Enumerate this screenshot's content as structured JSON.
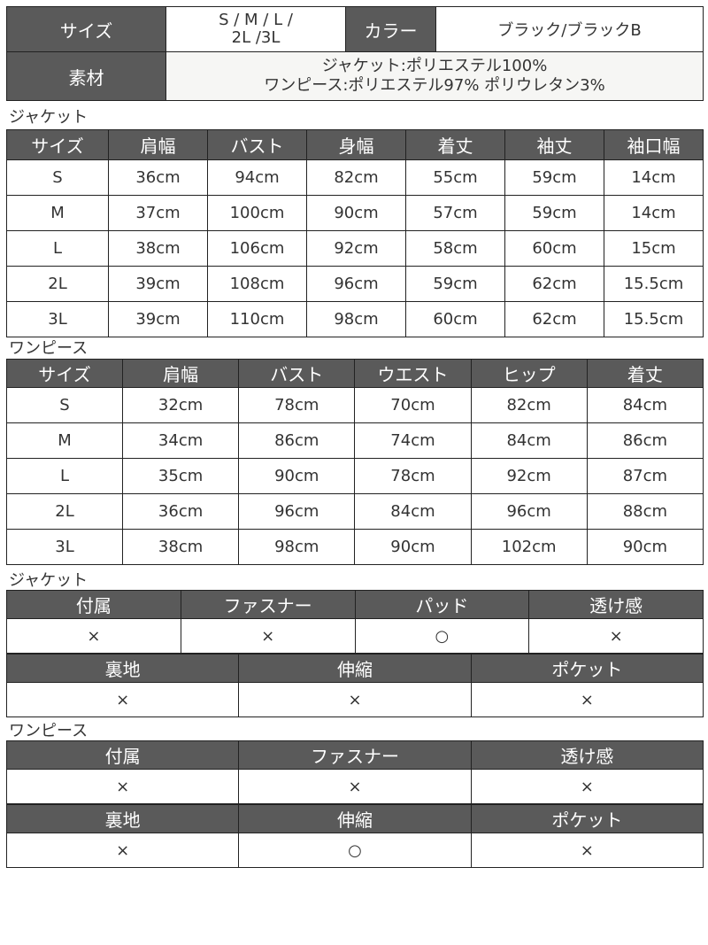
{
  "spec": {
    "size_label": "サイズ",
    "size_value_line1": "S / M / L /",
    "size_value_line2": "2L /3L",
    "color_label": "カラー",
    "color_value": "ブラック/ブラックB",
    "material_label": "素材",
    "material_line1": "ジャケット:ポリエステル100%",
    "material_line2": "ワンピース:ポリエステル97% ポリウレタン3%"
  },
  "jacket_size": {
    "title": "ジャケット",
    "headers": [
      "サイズ",
      "肩幅",
      "バスト",
      "身幅",
      "着丈",
      "袖丈",
      "袖口幅"
    ],
    "rows": [
      [
        "S",
        "36cm",
        "94cm",
        "82cm",
        "55cm",
        "59cm",
        "14cm"
      ],
      [
        "M",
        "37cm",
        "100cm",
        "90cm",
        "57cm",
        "59cm",
        "14cm"
      ],
      [
        "L",
        "38cm",
        "106cm",
        "92cm",
        "58cm",
        "60cm",
        "15cm"
      ],
      [
        "2L",
        "39cm",
        "108cm",
        "96cm",
        "59cm",
        "62cm",
        "15.5cm"
      ],
      [
        "3L",
        "39cm",
        "110cm",
        "98cm",
        "60cm",
        "62cm",
        "15.5cm"
      ]
    ]
  },
  "dress_size": {
    "title": "ワンピース",
    "headers": [
      "サイズ",
      "肩幅",
      "バスト",
      "ウエスト",
      "ヒップ",
      "着丈"
    ],
    "rows": [
      [
        "S",
        "32cm",
        "78cm",
        "70cm",
        "82cm",
        "84cm"
      ],
      [
        "M",
        "34cm",
        "86cm",
        "74cm",
        "84cm",
        "86cm"
      ],
      [
        "L",
        "35cm",
        "90cm",
        "78cm",
        "92cm",
        "87cm"
      ],
      [
        "2L",
        "36cm",
        "96cm",
        "84cm",
        "96cm",
        "88cm"
      ],
      [
        "3L",
        "38cm",
        "98cm",
        "90cm",
        "102cm",
        "90cm"
      ]
    ]
  },
  "jacket_features": {
    "title": "ジャケット",
    "groups": [
      {
        "headers": [
          "付属",
          "ファスナー",
          "パッド",
          "透け感"
        ],
        "values": [
          "×",
          "×",
          "○",
          "×"
        ]
      },
      {
        "headers": [
          "裏地",
          "伸縮",
          "ポケット"
        ],
        "values": [
          "×",
          "×",
          "×"
        ]
      }
    ]
  },
  "dress_features": {
    "title": "ワンピース",
    "groups": [
      {
        "headers": [
          "付属",
          "ファスナー",
          "透け感"
        ],
        "values": [
          "×",
          "×",
          "×"
        ]
      },
      {
        "headers": [
          "裏地",
          "伸縮",
          "ポケット"
        ],
        "values": [
          "×",
          "○",
          "×"
        ]
      }
    ]
  }
}
